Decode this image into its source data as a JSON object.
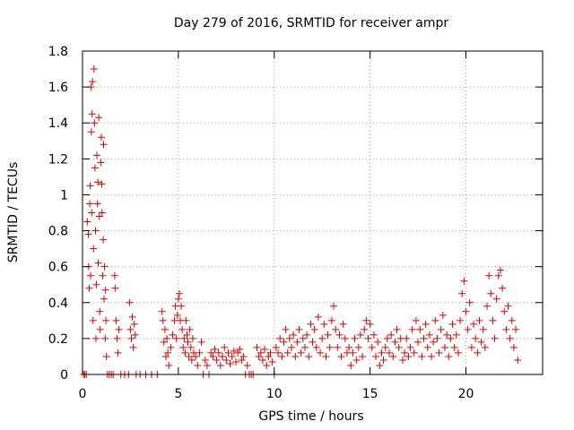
{
  "chart_data": {
    "type": "scatter",
    "title": "Day 279 of 2016, SRMTID for receiver ampr",
    "xlabel": "GPS time / hours",
    "ylabel": "SRMTID / TECUs",
    "xlim": [
      0,
      24
    ],
    "ylim": [
      0,
      1.8
    ],
    "x_ticks": [
      0,
      5,
      10,
      15,
      20
    ],
    "x_tick_labels": [
      "0",
      "5",
      "10",
      "15",
      "20"
    ],
    "y_ticks": [
      0,
      0.2,
      0.4,
      0.6,
      0.8,
      1,
      1.2,
      1.4,
      1.6,
      1.8
    ],
    "y_tick_labels": [
      "0",
      "0.2",
      "0.4",
      "0.6",
      "0.8",
      "1",
      "1.2",
      "1.4",
      "1.6",
      "1.8"
    ],
    "grid": true,
    "marker": "plus",
    "color": "#e00000",
    "series": [
      {
        "name": "SRMTID",
        "points": [
          [
            0.05,
            0.0
          ],
          [
            0.12,
            0.0
          ],
          [
            0.2,
            0.0
          ],
          [
            0.25,
            0.85
          ],
          [
            0.3,
            0.78
          ],
          [
            0.32,
            0.6
          ],
          [
            0.35,
            0.48
          ],
          [
            0.38,
            0.95
          ],
          [
            0.4,
            1.05
          ],
          [
            0.42,
            0.55
          ],
          [
            0.45,
            1.6
          ],
          [
            0.46,
            1.35
          ],
          [
            0.48,
            0.9
          ],
          [
            0.5,
            1.45
          ],
          [
            0.52,
            1.63
          ],
          [
            0.55,
            0.3
          ],
          [
            0.57,
            0.7
          ],
          [
            0.6,
            1.7
          ],
          [
            0.62,
            1.4
          ],
          [
            0.65,
            1.15
          ],
          [
            0.68,
            0.8
          ],
          [
            0.7,
            0.2
          ],
          [
            0.72,
            0.5
          ],
          [
            0.75,
            1.22
          ],
          [
            0.78,
            0.95
          ],
          [
            0.8,
            1.07
          ],
          [
            0.82,
            0.62
          ],
          [
            0.85,
            1.43
          ],
          [
            0.88,
            0.88
          ],
          [
            0.9,
            0.35
          ],
          [
            0.92,
            0.25
          ],
          [
            0.95,
            1.18
          ],
          [
            0.98,
            1.32
          ],
          [
            1.0,
            1.06
          ],
          [
            1.02,
            0.9
          ],
          [
            1.05,
            0.55
          ],
          [
            1.08,
            0.75
          ],
          [
            1.1,
            1.28
          ],
          [
            1.12,
            0.42
          ],
          [
            1.15,
            0.6
          ],
          [
            1.18,
            0.2
          ],
          [
            1.2,
            0.47
          ],
          [
            1.22,
            0.3
          ],
          [
            1.25,
            0.1
          ],
          [
            1.3,
            0.0
          ],
          [
            1.4,
            0.0
          ],
          [
            1.5,
            0.0
          ],
          [
            1.6,
            0.0
          ],
          [
            1.68,
            0.55
          ],
          [
            1.7,
            0.48
          ],
          [
            1.75,
            0.3
          ],
          [
            1.8,
            0.2
          ],
          [
            1.85,
            0.12
          ],
          [
            1.9,
            0.25
          ],
          [
            2.0,
            0.0
          ],
          [
            2.2,
            0.0
          ],
          [
            2.4,
            0.0
          ],
          [
            2.45,
            0.4
          ],
          [
            2.5,
            0.25
          ],
          [
            2.55,
            0.2
          ],
          [
            2.6,
            0.32
          ],
          [
            2.65,
            0.15
          ],
          [
            2.7,
            0.28
          ],
          [
            2.75,
            0.22
          ],
          [
            2.8,
            0.0
          ],
          [
            3.0,
            0.0
          ],
          [
            3.3,
            0.0
          ],
          [
            3.6,
            0.0
          ],
          [
            3.9,
            0.0
          ],
          [
            4.15,
            0.35
          ],
          [
            4.2,
            0.3
          ],
          [
            4.25,
            0.18
          ],
          [
            4.3,
            0.25
          ],
          [
            4.35,
            0.1
          ],
          [
            4.4,
            0.2
          ],
          [
            4.45,
            0.12
          ],
          [
            4.5,
            0.05
          ],
          [
            4.6,
            0.15
          ],
          [
            4.7,
            0.22
          ],
          [
            4.8,
            0.3
          ],
          [
            4.85,
            0.38
          ],
          [
            4.9,
            0.2
          ],
          [
            4.95,
            0.33
          ],
          [
            5.0,
            0.42
          ],
          [
            5.05,
            0.45
          ],
          [
            5.1,
            0.3
          ],
          [
            5.15,
            0.38
          ],
          [
            5.2,
            0.25
          ],
          [
            5.25,
            0.15
          ],
          [
            5.3,
            0.2
          ],
          [
            5.35,
            0.12
          ],
          [
            5.4,
            0.3
          ],
          [
            5.45,
            0.22
          ],
          [
            5.5,
            0.18
          ],
          [
            5.55,
            0.1
          ],
          [
            5.6,
            0.25
          ],
          [
            5.65,
            0.15
          ],
          [
            5.7,
            0.08
          ],
          [
            5.75,
            0.2
          ],
          [
            5.8,
            0.12
          ],
          [
            5.9,
            0.1
          ],
          [
            6.0,
            0.05
          ],
          [
            6.1,
            0.12
          ],
          [
            6.2,
            0.18
          ],
          [
            6.3,
            0.0
          ],
          [
            6.4,
            0.08
          ],
          [
            6.5,
            0.05
          ],
          [
            6.6,
            0.0
          ],
          [
            6.7,
            0.12
          ],
          [
            6.8,
            0.1
          ],
          [
            6.9,
            0.14
          ],
          [
            7.0,
            0.08
          ],
          [
            7.1,
            0.12
          ],
          [
            7.2,
            0.05
          ],
          [
            7.3,
            0.1
          ],
          [
            7.4,
            0.15
          ],
          [
            7.5,
            0.08
          ],
          [
            7.6,
            0.12
          ],
          [
            7.7,
            0.06
          ],
          [
            7.8,
            0.1
          ],
          [
            7.9,
            0.13
          ],
          [
            8.0,
            0.07
          ],
          [
            8.1,
            0.12
          ],
          [
            8.2,
            0.14
          ],
          [
            8.3,
            0.08
          ],
          [
            8.4,
            0.1
          ],
          [
            8.5,
            0.0
          ],
          [
            8.6,
            0.05
          ],
          [
            8.7,
            0.0
          ],
          [
            8.8,
            0.0
          ],
          [
            8.9,
            0.0
          ],
          [
            9.1,
            0.15
          ],
          [
            9.2,
            0.1
          ],
          [
            9.3,
            0.12
          ],
          [
            9.4,
            0.08
          ],
          [
            9.5,
            0.14
          ],
          [
            9.6,
            0.05
          ],
          [
            9.7,
            0.1
          ],
          [
            9.8,
            0.12
          ],
          [
            9.9,
            0.07
          ],
          [
            10.0,
            0.0
          ],
          [
            10.1,
            0.15
          ],
          [
            10.2,
            0.12
          ],
          [
            10.3,
            0.2
          ],
          [
            10.4,
            0.1
          ],
          [
            10.5,
            0.18
          ],
          [
            10.6,
            0.25
          ],
          [
            10.7,
            0.12
          ],
          [
            10.8,
            0.2
          ],
          [
            10.9,
            0.15
          ],
          [
            11.0,
            0.22
          ],
          [
            11.1,
            0.1
          ],
          [
            11.2,
            0.18
          ],
          [
            11.3,
            0.25
          ],
          [
            11.4,
            0.12
          ],
          [
            11.5,
            0.2
          ],
          [
            11.6,
            0.15
          ],
          [
            11.7,
            0.22
          ],
          [
            11.8,
            0.1
          ],
          [
            11.9,
            0.28
          ],
          [
            12.0,
            0.18
          ],
          [
            12.1,
            0.25
          ],
          [
            12.2,
            0.15
          ],
          [
            12.3,
            0.32
          ],
          [
            12.4,
            0.12
          ],
          [
            12.5,
            0.2
          ],
          [
            12.6,
            0.28
          ],
          [
            12.7,
            0.1
          ],
          [
            12.8,
            0.22
          ],
          [
            12.9,
            0.15
          ],
          [
            13.0,
            0.3
          ],
          [
            13.1,
            0.38
          ],
          [
            13.2,
            0.25
          ],
          [
            13.3,
            0.15
          ],
          [
            13.4,
            0.22
          ],
          [
            13.5,
            0.1
          ],
          [
            13.6,
            0.28
          ],
          [
            13.7,
            0.2
          ],
          [
            13.8,
            0.12
          ],
          [
            13.9,
            0.15
          ],
          [
            14.0,
            0.05
          ],
          [
            14.1,
            0.12
          ],
          [
            14.2,
            0.2
          ],
          [
            14.3,
            0.08
          ],
          [
            14.4,
            0.15
          ],
          [
            14.5,
            0.22
          ],
          [
            14.6,
            0.1
          ],
          [
            14.7,
            0.25
          ],
          [
            14.8,
            0.3
          ],
          [
            14.9,
            0.2
          ],
          [
            15.0,
            0.28
          ],
          [
            15.1,
            0.15
          ],
          [
            15.2,
            0.22
          ],
          [
            15.3,
            0.1
          ],
          [
            15.4,
            0.18
          ],
          [
            15.5,
            0.05
          ],
          [
            15.6,
            0.12
          ],
          [
            15.7,
            0.08
          ],
          [
            15.8,
            0.15
          ],
          [
            15.9,
            0.2
          ],
          [
            16.0,
            0.12
          ],
          [
            16.1,
            0.22
          ],
          [
            16.2,
            0.1
          ],
          [
            16.3,
            0.18
          ],
          [
            16.4,
            0.25
          ],
          [
            16.5,
            0.15
          ],
          [
            16.6,
            0.2
          ],
          [
            16.7,
            0.08
          ],
          [
            16.8,
            0.12
          ],
          [
            16.9,
            0.2
          ],
          [
            17.0,
            0.1
          ],
          [
            17.1,
            0.15
          ],
          [
            17.2,
            0.25
          ],
          [
            17.3,
            0.12
          ],
          [
            17.4,
            0.3
          ],
          [
            17.5,
            0.18
          ],
          [
            17.6,
            0.25
          ],
          [
            17.7,
            0.1
          ],
          [
            17.8,
            0.2
          ],
          [
            17.9,
            0.28
          ],
          [
            18.0,
            0.15
          ],
          [
            18.1,
            0.22
          ],
          [
            18.2,
            0.1
          ],
          [
            18.3,
            0.18
          ],
          [
            18.4,
            0.3
          ],
          [
            18.5,
            0.2
          ],
          [
            18.6,
            0.12
          ],
          [
            18.7,
            0.25
          ],
          [
            18.8,
            0.33
          ],
          [
            18.9,
            0.15
          ],
          [
            19.0,
            0.22
          ],
          [
            19.1,
            0.1
          ],
          [
            19.2,
            0.2
          ],
          [
            19.3,
            0.28
          ],
          [
            19.4,
            0.15
          ],
          [
            19.5,
            0.22
          ],
          [
            19.6,
            0.12
          ],
          [
            19.7,
            0.3
          ],
          [
            19.8,
            0.45
          ],
          [
            19.9,
            0.52
          ],
          [
            20.0,
            0.35
          ],
          [
            20.1,
            0.25
          ],
          [
            20.2,
            0.4
          ],
          [
            20.3,
            0.15
          ],
          [
            20.4,
            0.28
          ],
          [
            20.5,
            0.2
          ],
          [
            20.6,
            0.12
          ],
          [
            20.7,
            0.3
          ],
          [
            20.8,
            0.18
          ],
          [
            20.9,
            0.25
          ],
          [
            21.0,
            0.15
          ],
          [
            21.1,
            0.38
          ],
          [
            21.2,
            0.55
          ],
          [
            21.3,
            0.45
          ],
          [
            21.4,
            0.3
          ],
          [
            21.5,
            0.2
          ],
          [
            21.6,
            0.42
          ],
          [
            21.7,
            0.55
          ],
          [
            21.8,
            0.58
          ],
          [
            21.9,
            0.48
          ],
          [
            22.0,
            0.35
          ],
          [
            22.1,
            0.25
          ],
          [
            22.2,
            0.38
          ],
          [
            22.3,
            0.2
          ],
          [
            22.4,
            0.3
          ],
          [
            22.5,
            0.15
          ],
          [
            22.6,
            0.25
          ],
          [
            22.7,
            0.08
          ]
        ]
      }
    ]
  }
}
